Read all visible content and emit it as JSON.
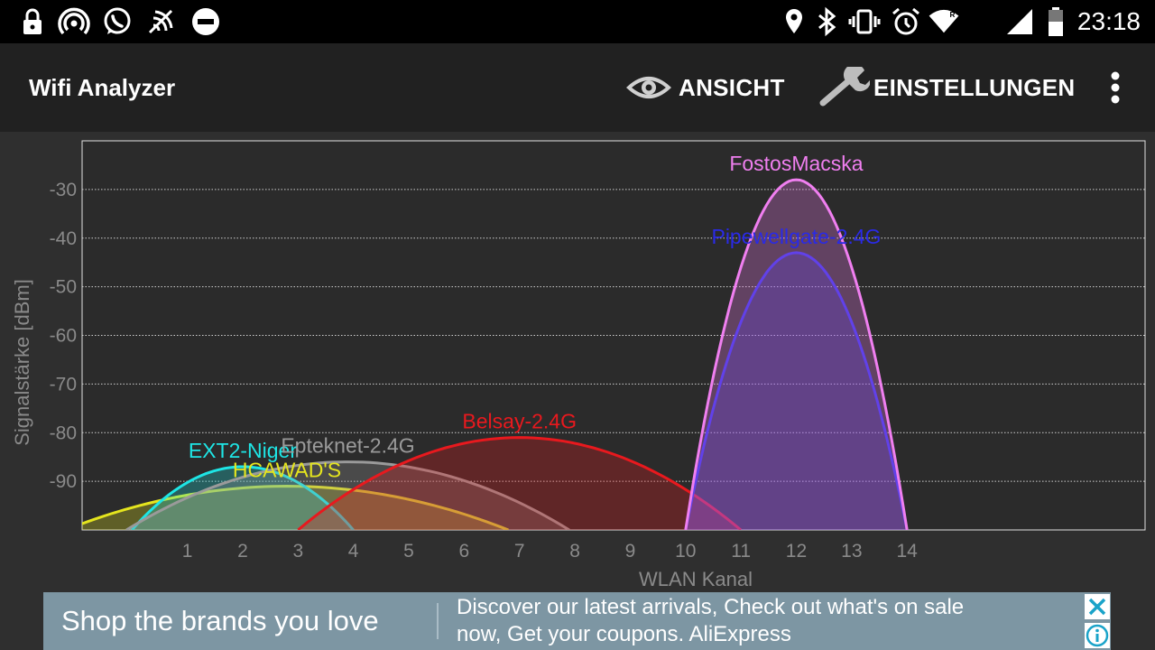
{
  "status_bar": {
    "time": "23:18",
    "left_icons": [
      "lock-icon",
      "wifi-hotspot-icon",
      "whatsapp-icon",
      "nfc-icon",
      "do-not-disturb-icon"
    ],
    "right_icons": [
      "location-icon",
      "bluetooth-icon",
      "vibrate-icon",
      "alarm-icon",
      "wifi-signal-icon",
      "cell-signal-icon",
      "battery-icon"
    ]
  },
  "app_bar": {
    "title": "Wifi Analyzer",
    "view_label": "ANSICHT",
    "settings_label": "EINSTELLUNGEN",
    "view_icon": "eye-icon",
    "settings_icon": "wrench-icon",
    "overflow_icon": "more-vert-icon"
  },
  "chart_data": {
    "type": "area",
    "xlabel": "WLAN Kanal",
    "ylabel": "Signalstärke [dBm]",
    "x_ticks": [
      1,
      2,
      3,
      4,
      5,
      6,
      7,
      8,
      9,
      10,
      11,
      12,
      13,
      14
    ],
    "y_ticks": [
      -30,
      -40,
      -50,
      -60,
      -70,
      -80,
      -90
    ],
    "xlim": [
      -0.9,
      18.3
    ],
    "ylim": [
      -100,
      -20
    ],
    "grid": true,
    "series": [
      {
        "name": "FostosMacska",
        "center": 12,
        "width": 4,
        "peak": -28,
        "color": "#f07ff0"
      },
      {
        "name": "Pipewellgate-2.4G",
        "center": 12,
        "width": 4,
        "peak": -43,
        "color": "#2a2ae6"
      },
      {
        "name": "Belsay-2.4G",
        "center": 7,
        "width": 8,
        "peak": -81,
        "color": "#e8191e"
      },
      {
        "name": "Epteknet-2.4G",
        "center": 3.9,
        "width": 8,
        "peak": -86,
        "color": "#9a9a9a"
      },
      {
        "name": "EXT2-Niger",
        "center": 2,
        "width": 4,
        "peak": -87,
        "color": "#1ee5e5"
      },
      {
        "name": "HCAWAD'S",
        "center": 2.8,
        "width": 8,
        "peak": -91,
        "color": "#e5e51e"
      }
    ]
  },
  "ad": {
    "headline": "Shop the brands you love",
    "line1": "Discover our latest arrivals, Check out what's on sale",
    "line2": "now, Get your coupons. AliExpress",
    "close_icon": "close-icon",
    "info_icon": "info-icon"
  }
}
